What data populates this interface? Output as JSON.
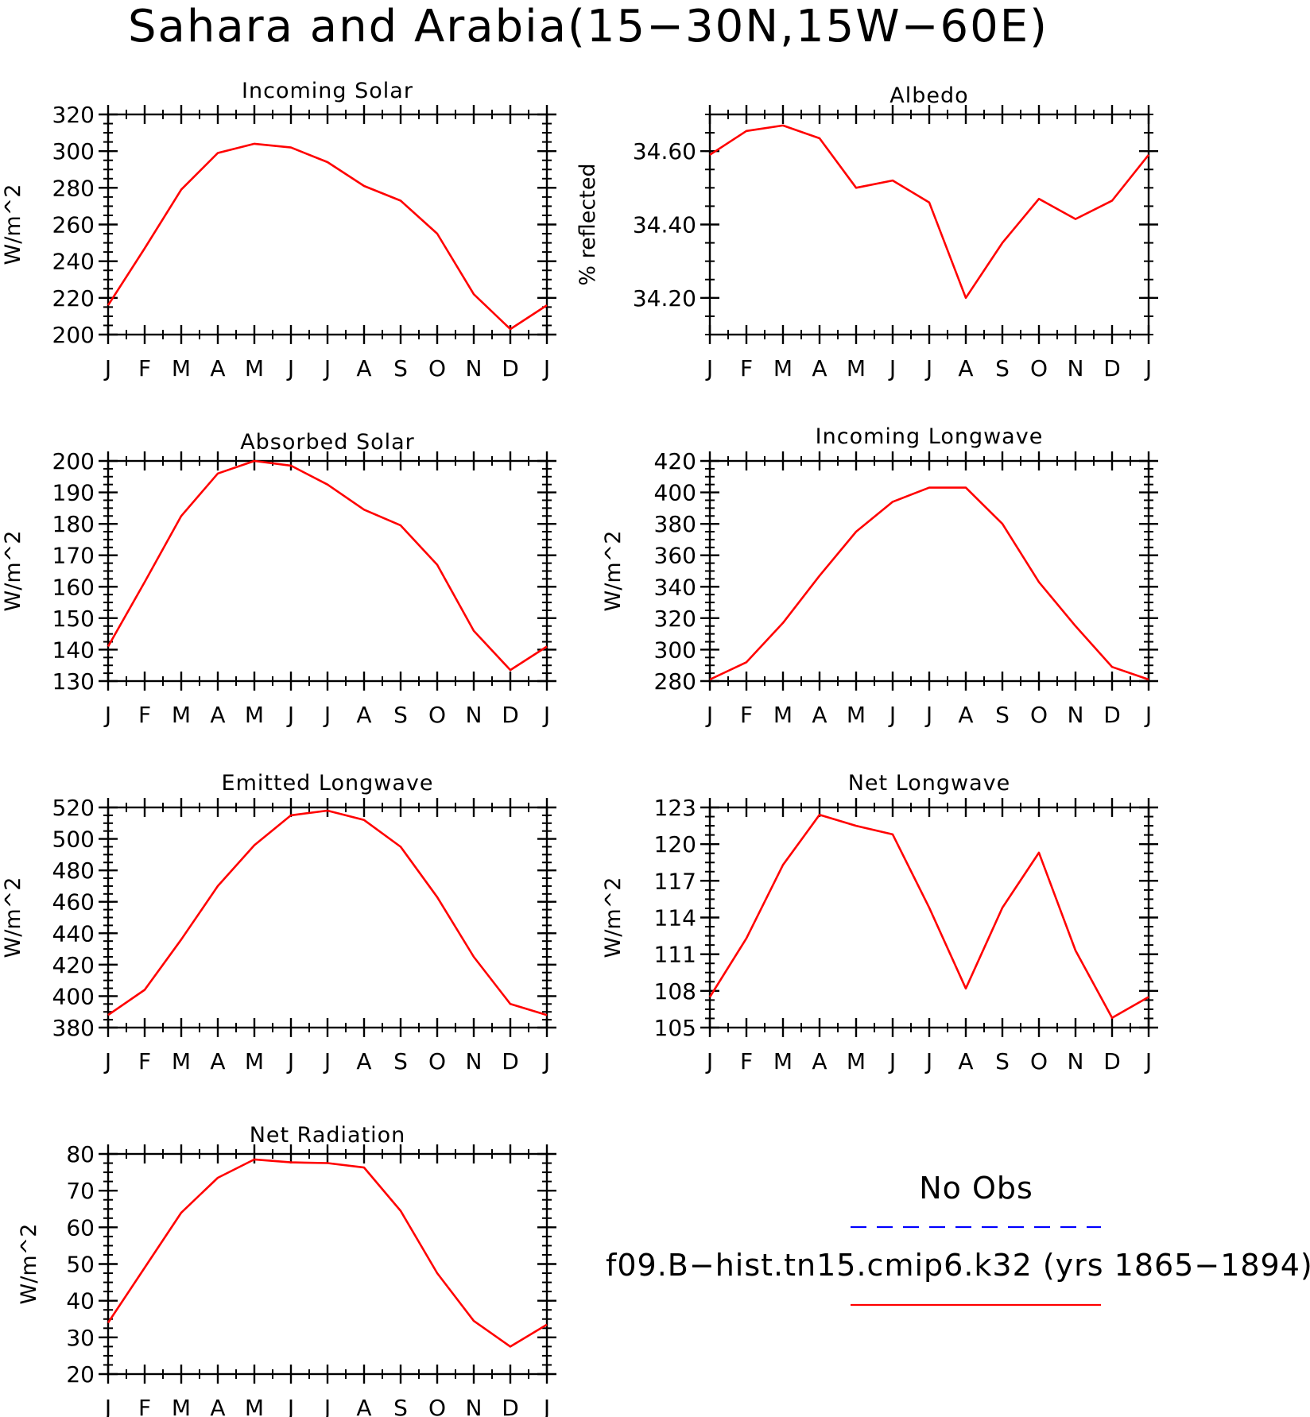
{
  "title": "Sahara and Arabia(15−30N,15W−60E)",
  "colors": {
    "model": "#ff0000",
    "obs": "#0000ff",
    "axis": "#000000"
  },
  "legend": {
    "obs_label": "No Obs",
    "model_label": "f09.B−hist.tn15.cmip6.k32 (yrs 1865−1894)"
  },
  "chart_data": [
    {
      "type": "line",
      "title": "Incoming Solar",
      "ylabel": "W/m^2",
      "ylim": [
        200,
        320
      ],
      "yticks": [
        200,
        220,
        240,
        260,
        280,
        300,
        320
      ],
      "ytick_labels": [
        "200",
        "220",
        "240",
        "260",
        "280",
        "300",
        "320"
      ],
      "categories": [
        "J",
        "F",
        "M",
        "A",
        "M",
        "J",
        "J",
        "A",
        "S",
        "O",
        "N",
        "D",
        "J"
      ],
      "series": [
        {
          "values": [
            216,
            247,
            279,
            299,
            304,
            302,
            294,
            281,
            273,
            255,
            222,
            203,
            216
          ]
        }
      ]
    },
    {
      "type": "line",
      "title": "Albedo",
      "ylabel": "% reflected",
      "ylim": [
        34.1,
        34.7
      ],
      "yticks": [
        34.2,
        34.4,
        34.6
      ],
      "ytick_labels": [
        "34.20",
        "34.40",
        "34.60"
      ],
      "categories": [
        "J",
        "F",
        "M",
        "A",
        "M",
        "J",
        "J",
        "A",
        "S",
        "O",
        "N",
        "D",
        "J"
      ],
      "series": [
        {
          "values": [
            34.59,
            34.655,
            34.67,
            34.635,
            34.5,
            34.52,
            34.46,
            34.2,
            34.35,
            34.47,
            34.415,
            34.465,
            34.59
          ]
        }
      ]
    },
    {
      "type": "line",
      "title": "Absorbed Solar",
      "ylabel": "W/m^2",
      "ylim": [
        130,
        200
      ],
      "yticks": [
        130,
        140,
        150,
        160,
        170,
        180,
        190,
        200
      ],
      "ytick_labels": [
        "130",
        "140",
        "150",
        "160",
        "170",
        "180",
        "190",
        "200"
      ],
      "categories": [
        "J",
        "F",
        "M",
        "A",
        "M",
        "J",
        "J",
        "A",
        "S",
        "O",
        "N",
        "D",
        "J"
      ],
      "series": [
        {
          "values": [
            141,
            161.5,
            182.5,
            196,
            200,
            198.5,
            192.5,
            184.5,
            179.5,
            167,
            146,
            133.5,
            141
          ]
        }
      ]
    },
    {
      "type": "line",
      "title": "Incoming Longwave",
      "ylabel": "W/m^2",
      "ylim": [
        280,
        420
      ],
      "yticks": [
        280,
        300,
        320,
        340,
        360,
        380,
        400,
        420
      ],
      "ytick_labels": [
        "280",
        "300",
        "320",
        "340",
        "360",
        "380",
        "400",
        "420"
      ],
      "categories": [
        "J",
        "F",
        "M",
        "A",
        "M",
        "J",
        "J",
        "A",
        "S",
        "O",
        "N",
        "D",
        "J"
      ],
      "series": [
        {
          "values": [
            281,
            292,
            317,
            347,
            375,
            394,
            403,
            403,
            380,
            343,
            315,
            289,
            281
          ]
        }
      ]
    },
    {
      "type": "line",
      "title": "Emitted Longwave",
      "ylabel": "W/m^2",
      "ylim": [
        380,
        520
      ],
      "yticks": [
        380,
        400,
        420,
        440,
        460,
        480,
        500,
        520
      ],
      "ytick_labels": [
        "380",
        "400",
        "420",
        "440",
        "460",
        "480",
        "500",
        "520"
      ],
      "categories": [
        "J",
        "F",
        "M",
        "A",
        "M",
        "J",
        "J",
        "A",
        "S",
        "O",
        "N",
        "D",
        "J"
      ],
      "series": [
        {
          "values": [
            388,
            404,
            436,
            470,
            496,
            515,
            518,
            512,
            495,
            463,
            425,
            395,
            388
          ]
        }
      ]
    },
    {
      "type": "line",
      "title": "Net Longwave",
      "ylabel": "W/m^2",
      "ylim": [
        105,
        123
      ],
      "yticks": [
        105,
        108,
        111,
        114,
        117,
        120,
        123
      ],
      "ytick_labels": [
        "105",
        "108",
        "111",
        "114",
        "117",
        "120",
        "123"
      ],
      "categories": [
        "J",
        "F",
        "M",
        "A",
        "M",
        "J",
        "J",
        "A",
        "S",
        "O",
        "N",
        "D",
        "J"
      ],
      "series": [
        {
          "values": [
            107.5,
            112.3,
            118.3,
            122.4,
            121.5,
            120.8,
            114.8,
            108.2,
            114.8,
            119.3,
            111.3,
            105.8,
            107.5
          ]
        }
      ]
    },
    {
      "type": "line",
      "title": "Net Radiation",
      "ylabel": "W/m^2",
      "ylim": [
        20,
        80
      ],
      "yticks": [
        20,
        30,
        40,
        50,
        60,
        70,
        80
      ],
      "ytick_labels": [
        "20",
        "30",
        "40",
        "50",
        "60",
        "70",
        "80"
      ],
      "categories": [
        "J",
        "F",
        "M",
        "A",
        "M",
        "J",
        "J",
        "A",
        "S",
        "O",
        "N",
        "D",
        "J"
      ],
      "series": [
        {
          "values": [
            34,
            49,
            64,
            73.5,
            78.5,
            77.7,
            77.5,
            76.3,
            64.5,
            47.5,
            34.5,
            27.5,
            33.5
          ]
        }
      ]
    }
  ]
}
